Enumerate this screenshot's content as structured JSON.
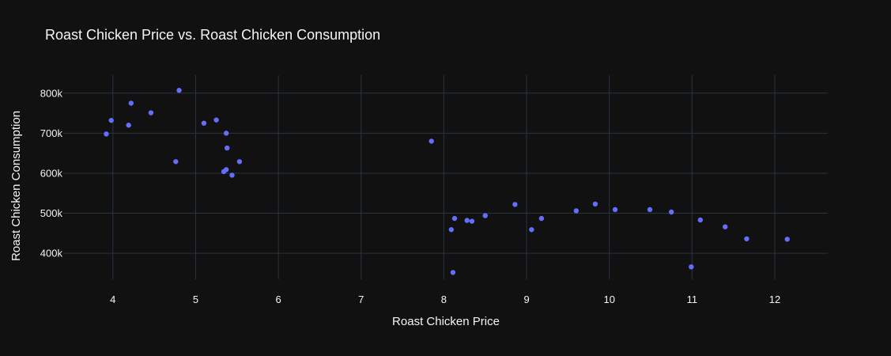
{
  "chart_data": {
    "type": "scatter",
    "title": "Roast Chicken Price vs. Roast Chicken Consumption",
    "xlabel": "Roast Chicken Price",
    "ylabel": "Roast Chicken Consumption",
    "xlim": [
      3.4,
      12.64
    ],
    "ylim": [
      335000,
      845000
    ],
    "x_ticks": [
      4,
      5,
      6,
      7,
      8,
      9,
      10,
      11,
      12
    ],
    "x_tick_labels": [
      "4",
      "5",
      "6",
      "7",
      "8",
      "9",
      "10",
      "11",
      "12"
    ],
    "y_ticks": [
      400000,
      500000,
      600000,
      700000,
      800000
    ],
    "y_tick_labels": [
      "400k",
      "500k",
      "600k",
      "700k",
      "800k"
    ],
    "grid": true,
    "colors": {
      "background": "#111111",
      "grid": "#283442",
      "marker": "#636efa",
      "text": "#f2f5fa"
    },
    "series": [
      {
        "points": [
          [
            3.92,
            698000
          ],
          [
            3.98,
            732000
          ],
          [
            4.19,
            720000
          ],
          [
            4.22,
            775000
          ],
          [
            4.46,
            751000
          ],
          [
            4.76,
            629000
          ],
          [
            4.8,
            807000
          ],
          [
            5.1,
            725000
          ],
          [
            5.25,
            733000
          ],
          [
            5.34,
            604000
          ],
          [
            5.37,
            609000
          ],
          [
            5.37,
            700000
          ],
          [
            5.38,
            663000
          ],
          [
            5.44,
            595000
          ],
          [
            5.53,
            629000
          ],
          [
            7.85,
            680000
          ],
          [
            8.09,
            459000
          ],
          [
            8.11,
            352000
          ],
          [
            8.13,
            487000
          ],
          [
            8.28,
            482000
          ],
          [
            8.34,
            480000
          ],
          [
            8.5,
            494000
          ],
          [
            8.86,
            522000
          ],
          [
            9.06,
            459000
          ],
          [
            9.18,
            487000
          ],
          [
            9.6,
            506000
          ],
          [
            9.83,
            523000
          ],
          [
            10.07,
            509000
          ],
          [
            10.49,
            509000
          ],
          [
            10.75,
            503000
          ],
          [
            10.99,
            366000
          ],
          [
            11.1,
            483000
          ],
          [
            11.4,
            466000
          ],
          [
            11.66,
            436000
          ],
          [
            12.15,
            435000
          ]
        ]
      }
    ]
  }
}
